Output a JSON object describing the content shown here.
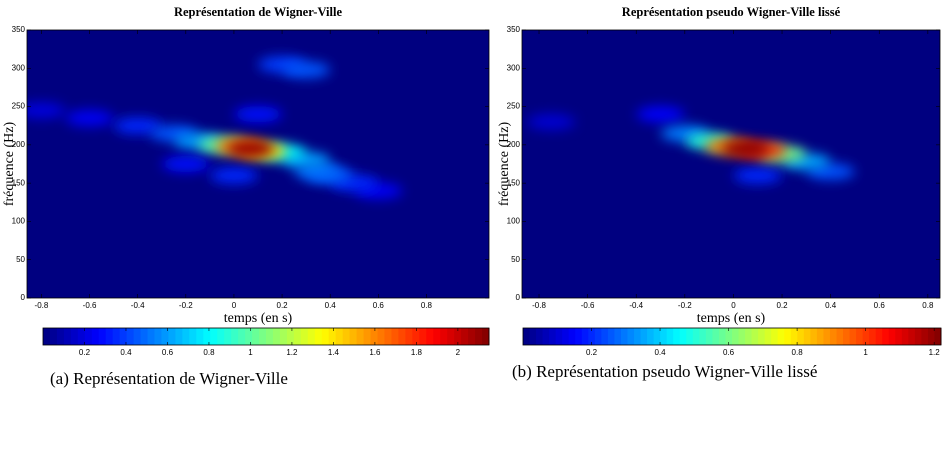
{
  "chart_data": [
    {
      "type": "heatmap",
      "title": "Représentation de Wigner-Ville",
      "x_label": "temps (en s)",
      "y_label": "fréquence (Hz)",
      "caption": "(a) Représentation de Wigner-Ville",
      "colormap": "jet",
      "xlim": [
        -0.86,
        1.06
      ],
      "ylim": [
        0,
        350
      ],
      "xticks": [
        -0.8,
        -0.6,
        -0.4,
        -0.2,
        0,
        0.2,
        0.4,
        0.6,
        0.8
      ],
      "yticks": [
        0,
        50,
        100,
        150,
        200,
        250,
        300,
        350
      ],
      "clim": [
        0,
        2.15
      ],
      "cticks": [
        0.2,
        0.4,
        0.6,
        0.8,
        1,
        1.2,
        1.4,
        1.6,
        1.8,
        2
      ],
      "x": [
        -0.8,
        -0.6,
        0.6,
        0.1,
        -0.2,
        0,
        0.5,
        -0.4,
        0.2,
        0.3,
        0.4,
        -0.25,
        0.35,
        0.3,
        -0.15,
        0.2,
        -0.05,
        0.12,
        0.02,
        0.07
      ],
      "y": [
        245,
        235,
        140,
        240,
        175,
        160,
        150,
        225,
        305,
        298,
        160,
        215,
        165,
        180,
        205,
        190,
        200,
        192,
        198,
        195
      ],
      "values": [
        0.2,
        0.25,
        0.25,
        0.3,
        0.3,
        0.35,
        0.35,
        0.35,
        0.4,
        0.45,
        0.45,
        0.45,
        0.5,
        0.6,
        0.6,
        0.8,
        1.0,
        1.4,
        1.6,
        2.1
      ]
    },
    {
      "type": "heatmap",
      "title": "Représentation pseudo Wigner-Ville lissé",
      "x_label": "temps (en s)",
      "y_label": "fréquence (Hz)",
      "caption": "(b) Représentation pseudo Wigner-Ville lissé",
      "colormap": "jet",
      "xlim": [
        -0.87,
        0.85
      ],
      "ylim": [
        0,
        350
      ],
      "xticks": [
        -0.8,
        -0.6,
        -0.4,
        -0.2,
        0,
        0.2,
        0.4,
        0.6,
        0.8
      ],
      "yticks": [
        0,
        50,
        100,
        150,
        200,
        250,
        300,
        350
      ],
      "clim": [
        0,
        1.22
      ],
      "cticks": [
        0.2,
        0.4,
        0.6,
        0.8,
        1,
        1.2
      ],
      "x": [
        -0.75,
        -0.3,
        0.1,
        0.4,
        -0.2,
        0.3,
        -0.1,
        0.2,
        -0.02,
        0.12,
        0.05
      ],
      "y": [
        230,
        240,
        160,
        165,
        215,
        178,
        205,
        188,
        198,
        193,
        195
      ],
      "values": [
        0.1,
        0.15,
        0.2,
        0.25,
        0.3,
        0.35,
        0.5,
        0.6,
        0.9,
        1.0,
        1.2
      ]
    }
  ]
}
